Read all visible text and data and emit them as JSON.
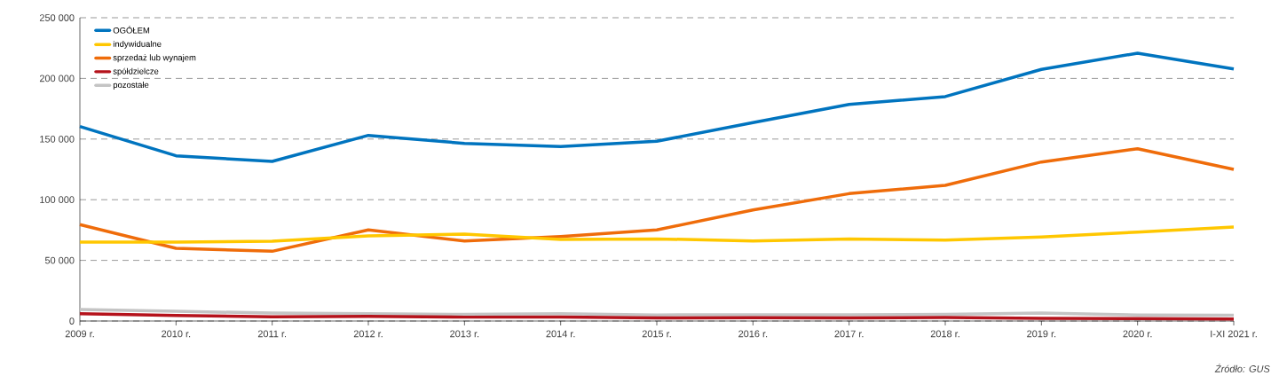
{
  "chart_data": {
    "type": "line",
    "categories": [
      "2009 r.",
      "2010 r.",
      "2011 r.",
      "2012 r.",
      "2013 r.",
      "2014 r.",
      "2015 r.",
      "2016 r.",
      "2017 r.",
      "2018 r.",
      "2019 r.",
      "2020 r.",
      "I-XI 2021 r."
    ],
    "series": [
      {
        "name": "OGÓŁEM",
        "color": "#0074bf",
        "values": [
          160300,
          136200,
          131600,
          153000,
          146400,
          143800,
          148200,
          163500,
          178600,
          185000,
          207400,
          220800,
          207800
        ]
      },
      {
        "name": "indywidualne",
        "color": "#ffc700",
        "values": [
          65000,
          65000,
          65800,
          70200,
          71600,
          67300,
          67700,
          66000,
          67700,
          66700,
          69200,
          73300,
          77500
        ]
      },
      {
        "name": "sprzedaż lub wynajem",
        "color": "#ef6c0a",
        "values": [
          79500,
          59900,
          57500,
          75100,
          66000,
          69700,
          75100,
          91600,
          105000,
          111800,
          131100,
          142000,
          125000
        ]
      },
      {
        "name": "spółdzielcze",
        "color": "#b5121b",
        "values": [
          6000,
          4500,
          3500,
          3800,
          3200,
          3300,
          2500,
          2800,
          2600,
          3000,
          2200,
          2000,
          1700
        ]
      },
      {
        "name": "pozostałe",
        "color": "#c4c4c4",
        "values": [
          9500,
          8000,
          6500,
          6000,
          5500,
          6000,
          5000,
          5200,
          5200,
          5500,
          6500,
          5000,
          4700
        ]
      }
    ],
    "ylim": [
      0,
      250000
    ],
    "yticks": [
      0,
      {
        "value": 50000,
        "label": "50 000"
      },
      {
        "value": 100000,
        "label": "100 000"
      },
      {
        "value": 150000,
        "label": "150 000"
      },
      {
        "value": 200000,
        "label": "200 000"
      },
      {
        "value": 250000,
        "label": "250 000"
      }
    ],
    "grid": "y",
    "legend": "top left",
    "marker": "none",
    "line_style": "solid",
    "annotations": [
      "*Źródło: GUS*"
    ]
  }
}
